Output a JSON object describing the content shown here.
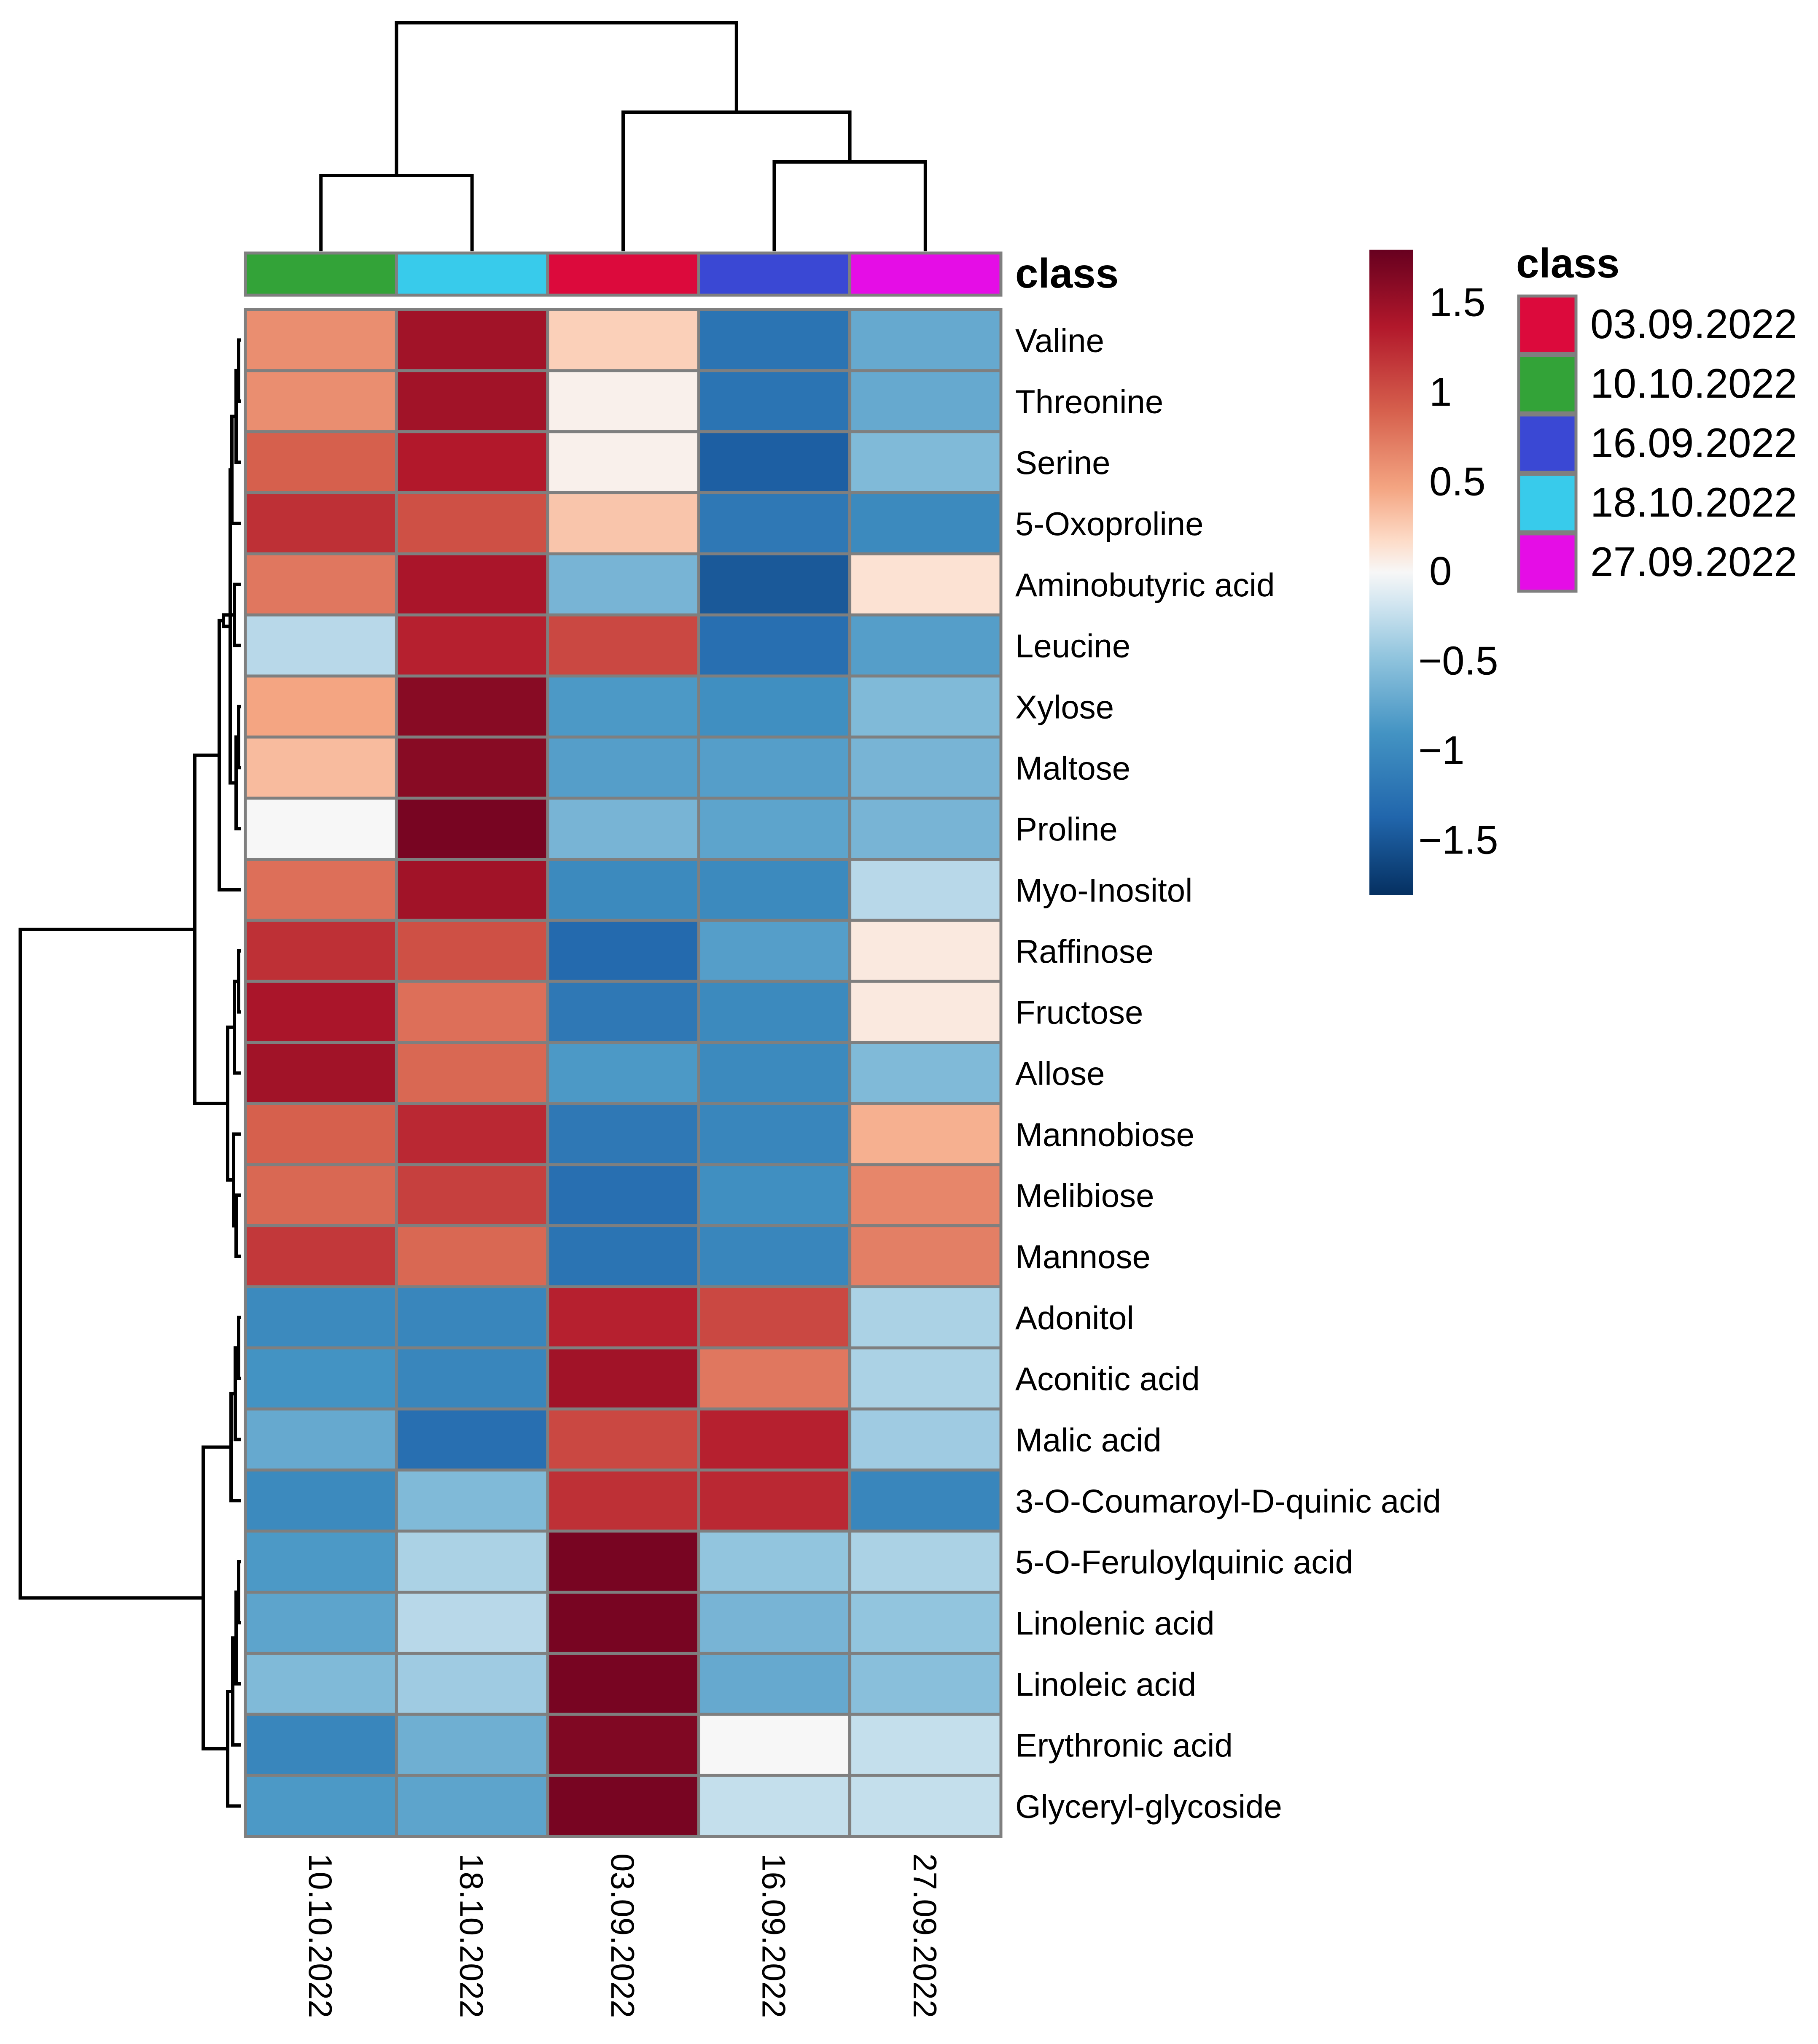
{
  "chart_data": {
    "type": "heatmap",
    "columns": [
      "10.10.2022",
      "18.10.2022",
      "03.09.2022",
      "16.09.2022",
      "27.09.2022"
    ],
    "column_classes": [
      "10.10.2022",
      "18.10.2022",
      "03.09.2022",
      "16.09.2022",
      "27.09.2022"
    ],
    "annotation_label": "class",
    "rows": [
      "Valine",
      "Threonine",
      "Serine",
      "5-Oxoproline",
      "Aminobutyric acid",
      "Leucine",
      "Xylose",
      "Maltose",
      "Proline",
      "Myo-Inositol",
      "Raffinose",
      "Fructose",
      "Allose",
      "Mannobiose",
      "Melibiose",
      "Mannose",
      "Adonitol",
      "Aconitic acid",
      "Malic acid",
      "3-O-Coumaroyl-D-quinic acid",
      "5-O-Feruloylquinic acid",
      "Linolenic acid",
      "Linoleic acid",
      "Erythronic acid",
      "Glyceryl-glycoside"
    ],
    "values": [
      [
        0.6,
        1.45,
        0.25,
        -1.25,
        -0.7
      ],
      [
        0.6,
        1.45,
        0.05,
        -1.25,
        -0.7
      ],
      [
        0.9,
        1.35,
        0.05,
        -1.45,
        -0.55
      ],
      [
        1.2,
        1.0,
        0.3,
        -1.2,
        -1.0
      ],
      [
        0.75,
        1.4,
        -0.6,
        -1.5,
        0.15
      ],
      [
        -0.3,
        1.3,
        1.05,
        -1.3,
        -0.8
      ],
      [
        0.45,
        1.6,
        -0.85,
        -0.95,
        -0.55
      ],
      [
        0.35,
        1.6,
        -0.8,
        -0.8,
        -0.6
      ],
      [
        0.0,
        1.7,
        -0.6,
        -0.75,
        -0.6
      ],
      [
        0.8,
        1.45,
        -1.0,
        -1.0,
        -0.3
      ],
      [
        1.2,
        1.0,
        -1.35,
        -0.8,
        0.1
      ],
      [
        1.4,
        0.8,
        -1.2,
        -1.0,
        0.1
      ],
      [
        1.45,
        0.85,
        -0.85,
        -1.0,
        -0.55
      ],
      [
        0.9,
        1.25,
        -1.2,
        -1.05,
        0.4
      ],
      [
        0.85,
        1.1,
        -1.3,
        -0.95,
        0.65
      ],
      [
        1.15,
        0.85,
        -1.25,
        -1.05,
        0.7
      ],
      [
        -1.0,
        -1.05,
        1.3,
        1.05,
        -0.35
      ],
      [
        -0.9,
        -1.05,
        1.45,
        0.75,
        -0.35
      ],
      [
        -0.7,
        -1.3,
        1.05,
        1.3,
        -0.4
      ],
      [
        -1.0,
        -0.55,
        1.2,
        1.25,
        -1.05
      ],
      [
        -0.85,
        -0.35,
        1.7,
        -0.45,
        -0.35
      ],
      [
        -0.75,
        -0.3,
        1.7,
        -0.6,
        -0.45
      ],
      [
        -0.55,
        -0.4,
        1.7,
        -0.7,
        -0.5
      ],
      [
        -1.05,
        -0.65,
        1.65,
        0.0,
        -0.25
      ],
      [
        -0.85,
        -0.75,
        1.7,
        -0.25,
        -0.25
      ]
    ],
    "color_scale": {
      "ticks": [
        1.5,
        1,
        0.5,
        0,
        -0.5,
        -1,
        -1.5
      ],
      "tick_labels": [
        "1.5",
        "1",
        "0.5",
        "0",
        "−0.5",
        "−1",
        "−1.5"
      ],
      "range": [
        -1.8,
        1.8
      ],
      "low_color": "#053061",
      "mid_color": "#f7f7f7",
      "high_color": "#67001f"
    },
    "legend": {
      "title": "class",
      "entries": [
        {
          "label": "03.09.2022",
          "color": "#dc0a3c"
        },
        {
          "label": "10.10.2022",
          "color": "#33a338"
        },
        {
          "label": "16.09.2022",
          "color": "#3a48d4"
        },
        {
          "label": "18.10.2022",
          "color": "#38cbeb"
        },
        {
          "label": "27.09.2022",
          "color": "#e50de6"
        }
      ]
    },
    "column_dendrogram": [
      [
        0,
        1
      ],
      [
        3,
        4
      ],
      [
        2,
        6
      ],
      [
        5,
        7
      ]
    ],
    "row_dendrogram": [
      [
        0,
        1
      ],
      [
        25,
        2
      ],
      [
        26,
        3
      ],
      [
        6,
        7
      ],
      [
        28,
        8
      ],
      [
        27,
        29
      ],
      [
        4,
        5
      ],
      [
        31,
        30
      ],
      [
        32,
        9
      ],
      [
        10,
        11
      ],
      [
        34,
        12
      ],
      [
        14,
        15
      ],
      [
        36,
        13
      ],
      [
        37,
        35
      ],
      [
        38,
        33
      ],
      [
        16,
        17
      ],
      [
        40,
        18
      ],
      [
        41,
        19
      ],
      [
        20,
        21
      ],
      [
        43,
        22
      ],
      [
        44,
        23
      ],
      [
        45,
        24
      ],
      [
        42,
        46
      ],
      [
        39,
        47
      ]
    ]
  }
}
